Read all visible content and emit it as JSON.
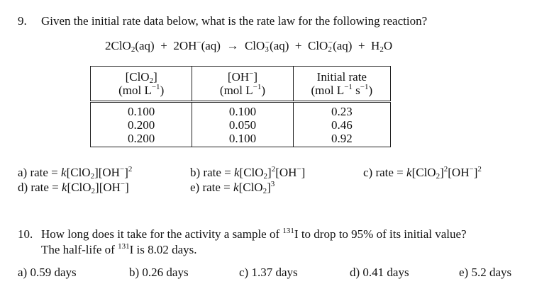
{
  "q9": {
    "number": "9.",
    "text": "Given the initial rate data below, what is the rate law for the following reaction?",
    "reaction": {
      "reactant1": "2ClO",
      "reactant1_sub": "2",
      "reactant1_state": "(aq)",
      "plus1": "+",
      "reactant2": "2OH",
      "reactant2_sup": "−",
      "reactant2_state": "(aq)",
      "arrow": "→",
      "product1": "ClO",
      "product1_sub": "3",
      "product1_sup": "−",
      "product1_state": "(aq)",
      "plus2": "+",
      "product2": "ClO",
      "product2_sub": "2",
      "product2_sup": "−",
      "product2_state": "(aq)",
      "plus3": "+",
      "product3": "H",
      "product3_sub": "2",
      "product3_tail": "O"
    },
    "table": {
      "headers": [
        {
          "line1": "[ClO",
          "line1_sub": "2",
          "line1_tail": "]",
          "unit_pre": "(mol L",
          "unit_sup": "−1",
          "unit_post": ")"
        },
        {
          "line1": "[OH",
          "line1_sup": "−",
          "line1_tail": "]",
          "unit_pre": "(mol L",
          "unit_sup": "−1",
          "unit_post": ")"
        },
        {
          "line1": "Initial rate",
          "unit_pre": "(mol L",
          "unit_sup": "−1",
          "unit_mid": " s",
          "unit_sup2": "−1",
          "unit_post": ")"
        }
      ],
      "rows": [
        [
          "0.100",
          "0.100",
          "0.23"
        ],
        [
          "0.200",
          "0.050",
          "0.46"
        ],
        [
          "0.200",
          "0.100",
          "0.92"
        ]
      ]
    },
    "options": {
      "a": {
        "prefix": "a) rate = ",
        "k": "k",
        "rest": "[ClO",
        "sub": "2",
        "rest2": "][OH",
        "sup": "−",
        "rest3": "]",
        "sup2": "2"
      },
      "b": {
        "prefix": "b) rate = ",
        "k": "k",
        "rest": "[ClO",
        "sub": "2",
        "rest2": "]",
        "sup": "2",
        "rest3": "[OH",
        "sup2": "−",
        "rest4": "]"
      },
      "c": {
        "prefix": "c) rate = ",
        "k": "k",
        "rest": "[ClO",
        "sub": "2",
        "rest2": "]",
        "sup": "2",
        "rest3": "[OH",
        "sup2": "−",
        "rest4": "]",
        "sup3": "2"
      },
      "d": {
        "prefix": "d) rate = ",
        "k": "k",
        "rest": "[ClO",
        "sub": "2",
        "rest2": "][OH",
        "sup": "−",
        "rest3": "]"
      },
      "e": {
        "prefix": "e) rate = ",
        "k": "k",
        "rest": "[ClO",
        "sub": "2",
        "rest2": "]",
        "sup": "3"
      }
    }
  },
  "q10": {
    "number": "10.",
    "line1_pre": "How long does it take for the activity a sample of ",
    "isotope_mass": "131",
    "element": "I",
    "line1_post": " to drop to 95% of its initial value?",
    "line2_pre": "The half-life of ",
    "line2_post": " is 8.02 days.",
    "options": [
      "a) 0.59 days",
      "b) 0.26 days",
      "c) 1.37 days",
      "d) 0.41 days",
      "e) 5.2 days"
    ]
  }
}
